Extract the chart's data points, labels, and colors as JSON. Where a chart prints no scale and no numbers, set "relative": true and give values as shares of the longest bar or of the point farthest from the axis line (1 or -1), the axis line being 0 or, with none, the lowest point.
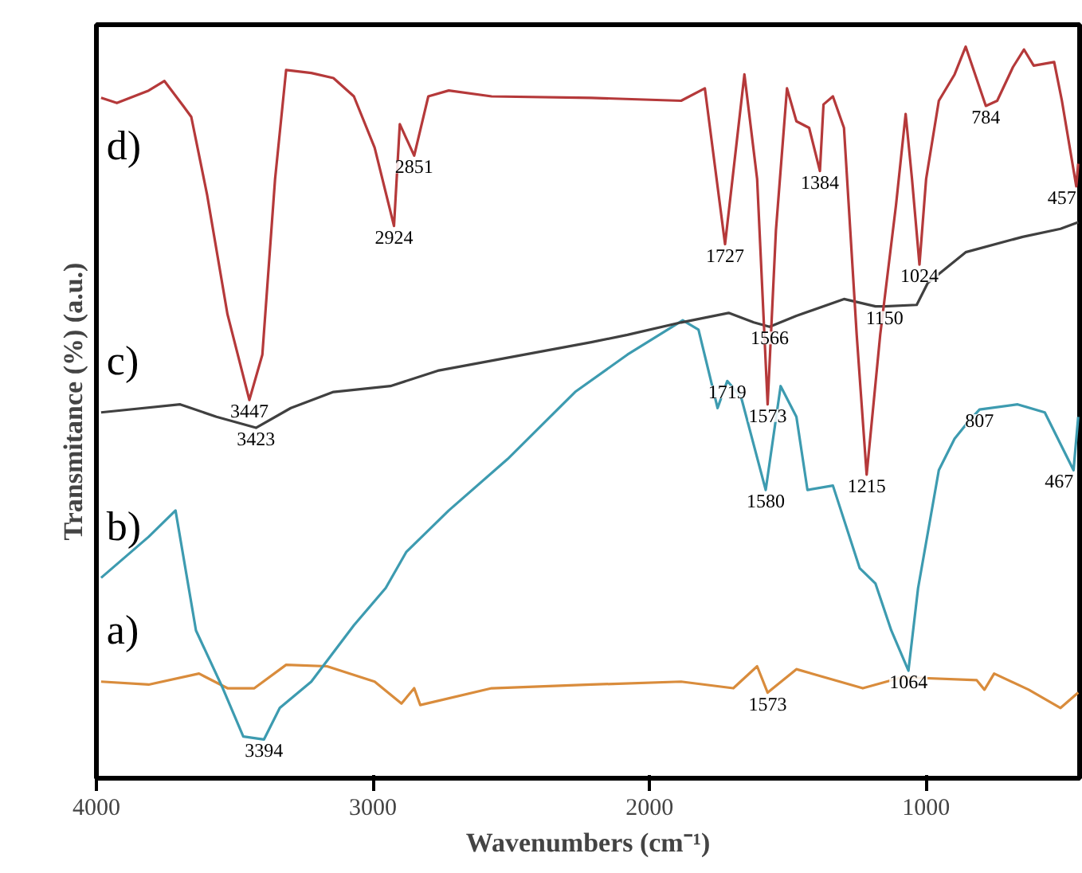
{
  "chart_data": {
    "type": "line",
    "relative": true,
    "xlabel": "Wavenumbers (cm⁻¹)",
    "ylabel": "Transmitance (%) (a.u.)",
    "xlim": [
      4000,
      445
    ],
    "xticks": [
      4000,
      3000,
      2000,
      1000
    ],
    "grid": false,
    "marker": "none",
    "line_style": "solid",
    "series": [
      {
        "name": "a)",
        "color": "#d98c3c",
        "x": [
          3983,
          3811,
          3629,
          3526,
          3429,
          3314,
          3166,
          2994,
          2897,
          2851,
          2829,
          2571,
          2211,
          1886,
          1697,
          1611,
          1573,
          1469,
          1229,
          1086,
          817,
          789,
          754,
          629,
          514,
          450
        ],
        "values": [
          0.132,
          0.128,
          0.143,
          0.123,
          0.123,
          0.155,
          0.153,
          0.132,
          0.102,
          0.123,
          0.1,
          0.123,
          0.128,
          0.132,
          0.123,
          0.153,
          0.117,
          0.149,
          0.123,
          0.138,
          0.134,
          0.121,
          0.143,
          0.121,
          0.096,
          0.117
        ]
      },
      {
        "name": "b)",
        "color": "#3d9bb0",
        "x": [
          3983,
          3811,
          3714,
          3640,
          3543,
          3469,
          3394,
          3337,
          3223,
          3069,
          2954,
          2880,
          2726,
          2514,
          2269,
          2080,
          1880,
          1823,
          1754,
          1719,
          1669,
          1580,
          1526,
          1469,
          1429,
          1337,
          1240,
          1183,
          1126,
          1064,
          1029,
          954,
          897,
          857,
          807,
          669,
          571,
          467,
          450
        ],
        "values": [
          0.274,
          0.33,
          0.366,
          0.202,
          0.123,
          0.057,
          0.053,
          0.096,
          0.132,
          0.209,
          0.26,
          0.309,
          0.366,
          0.436,
          0.528,
          0.579,
          0.626,
          0.613,
          0.506,
          0.543,
          0.521,
          0.394,
          0.536,
          0.494,
          0.394,
          0.4,
          0.287,
          0.266,
          0.202,
          0.147,
          0.26,
          0.421,
          0.464,
          0.483,
          0.504,
          0.511,
          0.5,
          0.421,
          0.494
        ]
      },
      {
        "name": "c)",
        "color": "#404040",
        "x": [
          3983,
          3697,
          3566,
          3423,
          3297,
          3143,
          2937,
          2766,
          2211,
          2080,
          1886,
          1714,
          1623,
          1566,
          1469,
          1297,
          1183,
          1150,
          1034,
          994,
          857,
          651,
          514,
          450
        ],
        "values": [
          0.5,
          0.511,
          0.494,
          0.479,
          0.506,
          0.528,
          0.536,
          0.557,
          0.596,
          0.606,
          0.623,
          0.636,
          0.623,
          0.617,
          0.632,
          0.655,
          0.645,
          0.645,
          0.647,
          0.677,
          0.719,
          0.74,
          0.751,
          0.76
        ]
      },
      {
        "name": "d)",
        "color": "#b5393a",
        "x": [
          3983,
          3926,
          3811,
          3754,
          3686,
          3657,
          3600,
          3526,
          3447,
          3400,
          3354,
          3314,
          3223,
          3143,
          3069,
          2994,
          2924,
          2903,
          2851,
          2800,
          2726,
          2571,
          2211,
          1886,
          1800,
          1727,
          1657,
          1611,
          1573,
          1543,
          1503,
          1469,
          1423,
          1384,
          1371,
          1337,
          1297,
          1251,
          1215,
          1166,
          1109,
          1074,
          1051,
          1024,
          1000,
          954,
          897,
          857,
          784,
          743,
          686,
          646,
          611,
          537,
          509,
          457,
          450
        ],
        "values": [
          0.93,
          0.923,
          0.94,
          0.953,
          0.919,
          0.904,
          0.798,
          0.634,
          0.517,
          0.579,
          0.819,
          0.968,
          0.964,
          0.957,
          0.932,
          0.862,
          0.755,
          0.894,
          0.851,
          0.932,
          0.94,
          0.932,
          0.93,
          0.926,
          0.943,
          0.73,
          0.962,
          0.819,
          0.511,
          0.749,
          0.943,
          0.898,
          0.889,
          0.83,
          0.921,
          0.932,
          0.889,
          0.606,
          0.415,
          0.606,
          0.783,
          0.908,
          0.819,
          0.702,
          0.819,
          0.926,
          0.962,
          1.0,
          0.919,
          0.926,
          0.972,
          0.996,
          0.974,
          0.979,
          0.926,
          0.809,
          0.84
        ]
      }
    ],
    "annotations": [
      {
        "text": "3447",
        "x": 3447,
        "y": 0.517
      },
      {
        "text": "2924",
        "x": 2924,
        "y": 0.755
      },
      {
        "text": "2851",
        "x": 2851,
        "y": 0.851
      },
      {
        "text": "1727",
        "x": 1727,
        "y": 0.73
      },
      {
        "text": "1573",
        "x": 1573,
        "y": 0.511
      },
      {
        "text": "1384",
        "x": 1384,
        "y": 0.83
      },
      {
        "text": "1215",
        "x": 1215,
        "y": 0.415
      },
      {
        "text": "1024",
        "x": 1024,
        "y": 0.702
      },
      {
        "text": "784",
        "x": 784,
        "y": 0.919
      },
      {
        "text": "457",
        "x": 457,
        "y": 0.809
      },
      {
        "text": "3423",
        "x": 3423,
        "y": 0.479
      },
      {
        "text": "1566",
        "x": 1566,
        "y": 0.617
      },
      {
        "text": "1150",
        "x": 1150,
        "y": 0.645
      },
      {
        "text": "3394",
        "x": 3394,
        "y": 0.053
      },
      {
        "text": "1719",
        "x": 1719,
        "y": 0.543
      },
      {
        "text": "1580",
        "x": 1580,
        "y": 0.394
      },
      {
        "text": "1064",
        "x": 1064,
        "y": 0.147
      },
      {
        "text": "807",
        "x": 807,
        "y": 0.504
      },
      {
        "text": "467",
        "x": 467,
        "y": 0.421
      },
      {
        "text": "1573",
        "x": 1573,
        "y": 0.117
      }
    ]
  }
}
